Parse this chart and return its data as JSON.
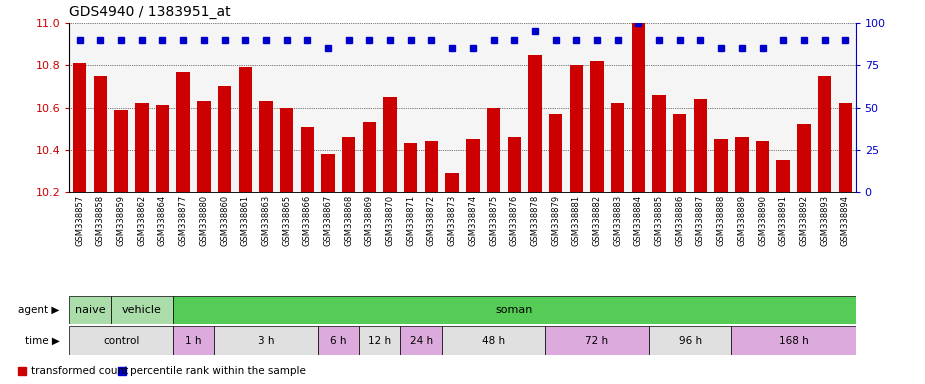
{
  "title": "GDS4940 / 1383951_at",
  "samples": [
    "GSM338857",
    "GSM338858",
    "GSM338859",
    "GSM338862",
    "GSM338864",
    "GSM338877",
    "GSM338880",
    "GSM338860",
    "GSM338861",
    "GSM338863",
    "GSM338865",
    "GSM338866",
    "GSM338867",
    "GSM338868",
    "GSM338869",
    "GSM338870",
    "GSM338871",
    "GSM338872",
    "GSM338873",
    "GSM338874",
    "GSM338875",
    "GSM338876",
    "GSM338878",
    "GSM338879",
    "GSM338881",
    "GSM338882",
    "GSM338883",
    "GSM338884",
    "GSM338885",
    "GSM338886",
    "GSM338887",
    "GSM338888",
    "GSM338889",
    "GSM338890",
    "GSM338891",
    "GSM338892",
    "GSM338893",
    "GSM338894"
  ],
  "bar_values": [
    10.81,
    10.75,
    10.59,
    10.62,
    10.61,
    10.77,
    10.63,
    10.7,
    10.79,
    10.63,
    10.6,
    10.51,
    10.38,
    10.46,
    10.53,
    10.65,
    10.43,
    10.44,
    10.29,
    10.45,
    10.6,
    10.46,
    10.85,
    10.57,
    10.8,
    10.82,
    10.62,
    11.0,
    10.66,
    10.57,
    10.64,
    10.45,
    10.46,
    10.44,
    10.35,
    10.52,
    10.75,
    10.62
  ],
  "percentile_values": [
    90,
    90,
    90,
    90,
    90,
    90,
    90,
    90,
    90,
    90,
    90,
    90,
    85,
    90,
    90,
    90,
    90,
    90,
    85,
    85,
    90,
    90,
    95,
    90,
    90,
    90,
    90,
    100,
    90,
    90,
    90,
    85,
    85,
    85,
    90,
    90,
    90,
    90
  ],
  "bar_color": "#cc0000",
  "percentile_color": "#0000cc",
  "ylim_left": [
    10.2,
    11.0
  ],
  "ylim_right": [
    0,
    100
  ],
  "yticks_left": [
    10.2,
    10.4,
    10.6,
    10.8,
    11.0
  ],
  "yticks_right": [
    0,
    25,
    50,
    75,
    100
  ],
  "agent_blocks": [
    {
      "label": "naive",
      "start": 0,
      "end": 2,
      "color": "#aaddaa"
    },
    {
      "label": "vehicle",
      "start": 2,
      "end": 5,
      "color": "#aaddaa"
    },
    {
      "label": "soman",
      "start": 5,
      "end": 38,
      "color": "#55cc55"
    }
  ],
  "time_blocks": [
    {
      "label": "control",
      "start": 0,
      "end": 5,
      "color": "#e0e0e0"
    },
    {
      "label": "1 h",
      "start": 5,
      "end": 7,
      "color": "#ddaadd"
    },
    {
      "label": "3 h",
      "start": 7,
      "end": 12,
      "color": "#e0e0e0"
    },
    {
      "label": "6 h",
      "start": 12,
      "end": 14,
      "color": "#ddaadd"
    },
    {
      "label": "12 h",
      "start": 14,
      "end": 16,
      "color": "#e0e0e0"
    },
    {
      "label": "24 h",
      "start": 16,
      "end": 18,
      "color": "#ddaadd"
    },
    {
      "label": "48 h",
      "start": 18,
      "end": 23,
      "color": "#e0e0e0"
    },
    {
      "label": "72 h",
      "start": 23,
      "end": 28,
      "color": "#ddaadd"
    },
    {
      "label": "96 h",
      "start": 28,
      "end": 32,
      "color": "#e0e0e0"
    },
    {
      "label": "168 h",
      "start": 32,
      "end": 38,
      "color": "#ddaadd"
    }
  ],
  "legend": [
    {
      "label": "transformed count",
      "color": "#cc0000"
    },
    {
      "label": "percentile rank within the sample",
      "color": "#0000cc"
    }
  ],
  "bg_color": "#f5f5f5"
}
